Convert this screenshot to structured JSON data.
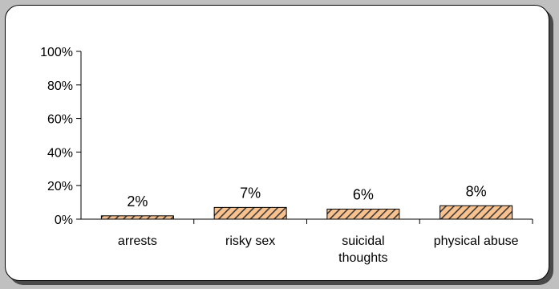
{
  "chart_data": {
    "type": "bar",
    "categories": [
      "arrests",
      "risky sex",
      "suicidal thoughts",
      "physical abuse"
    ],
    "category_lines": [
      [
        "arrests"
      ],
      [
        "risky sex"
      ],
      [
        "suicidal",
        "thoughts"
      ],
      [
        "physical abuse"
      ]
    ],
    "values": [
      2,
      7,
      6,
      8
    ],
    "data_labels": [
      "2%",
      "7%",
      "6%",
      "8%"
    ],
    "ylim": [
      0,
      100
    ],
    "yticks": [
      0,
      20,
      40,
      60,
      80,
      100
    ],
    "ytick_labels": [
      "0%",
      "20%",
      "40%",
      "60%",
      "80%",
      "100%"
    ],
    "title": "",
    "xlabel": "",
    "ylabel": "",
    "grid": false,
    "legend": "none",
    "colors": {
      "bar_fill": "#f9c18e",
      "bar_hatch": "#3a3a3a",
      "bar_border": "#000000",
      "axis": "#000000",
      "frame_background": "#ffffff",
      "page_background": "#c0c0c0",
      "shadow": "#4a4a4a"
    }
  }
}
